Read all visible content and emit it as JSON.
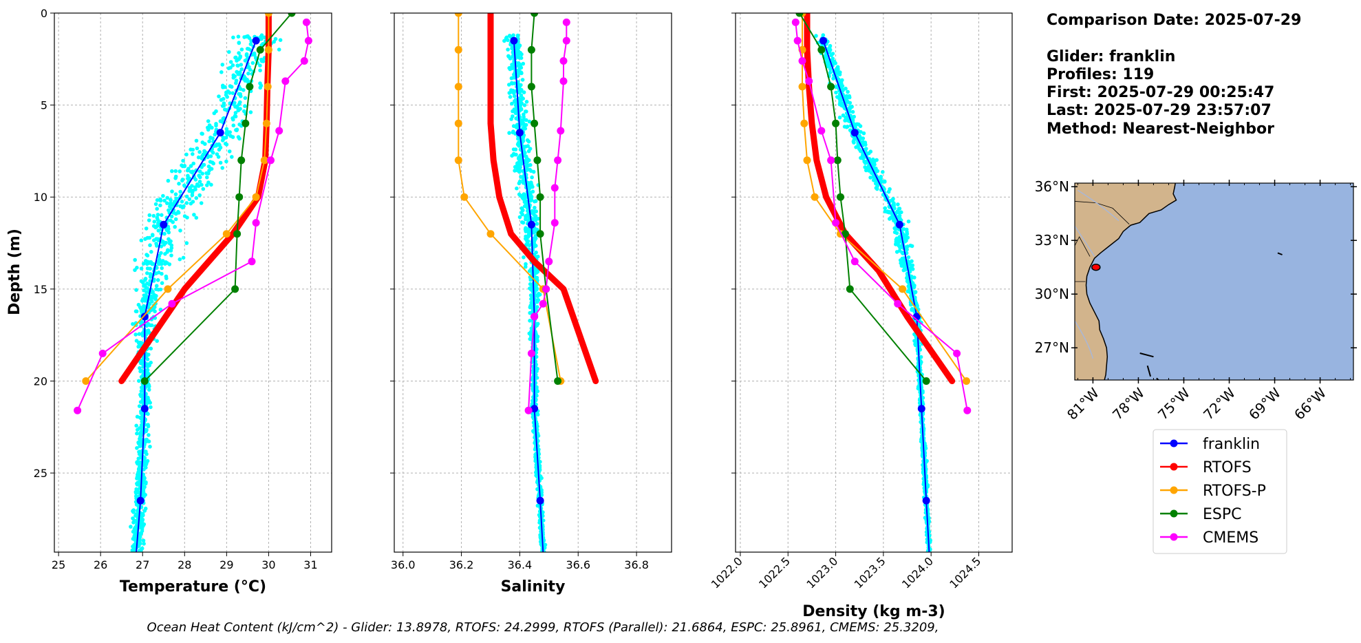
{
  "info": {
    "comparison_date": "Comparison Date: 2025-07-29",
    "glider": "Glider: franklin",
    "profiles": "Profiles: 119",
    "first": "First: 2025-07-29 00:25:47",
    "last": "Last: 2025-07-29 23:57:07",
    "method": "Method: Nearest-Neighbor"
  },
  "footer": "Ocean Heat Content (kJ/cm^2) - Glider: 13.8978,  RTOFS: 24.2999,  RTOFS (Parallel): 21.6864,  ESPC: 25.8961,  CMEMS: 25.3209,",
  "colors": {
    "franklin": "#0000ff",
    "RTOFS": "#ff0000",
    "RTOFS-P": "#ffa500",
    "ESPC": "#008000",
    "CMEMS": "#ff00ff",
    "scatter": "#00ffff",
    "land": "#d2b48c",
    "ocean": "#98b4e0"
  },
  "legend": [
    "franklin",
    "RTOFS",
    "RTOFS-P",
    "ESPC",
    "CMEMS"
  ],
  "chart_data": [
    {
      "type": "line",
      "xlabel": "Temperature (°C)",
      "ylabel": "Depth (m)",
      "xlim": [
        24.9,
        31.5
      ],
      "ylim": [
        29.3,
        0
      ],
      "xticks": [
        25,
        26,
        27,
        28,
        29,
        30,
        31
      ],
      "yticks": [
        0,
        5,
        10,
        15,
        20,
        25
      ],
      "grid": true,
      "series": [
        {
          "name": "franklin",
          "marker": true,
          "width": 2,
          "points": [
            [
              29.7,
              1.5
            ],
            [
              28.85,
              6.5
            ],
            [
              27.5,
              11.5
            ],
            [
              27.05,
              16.5
            ],
            [
              27.05,
              21.5
            ],
            [
              26.95,
              26.5
            ],
            [
              26.85,
              29.3
            ]
          ]
        },
        {
          "name": "RTOFS",
          "marker": false,
          "width": 9,
          "points": [
            [
              30.0,
              0
            ],
            [
              30.0,
              2
            ],
            [
              29.97,
              4
            ],
            [
              29.95,
              6
            ],
            [
              29.92,
              8
            ],
            [
              29.75,
              10
            ],
            [
              29.15,
              12
            ],
            [
              28.0,
              15
            ],
            [
              26.5,
              20
            ]
          ]
        },
        {
          "name": "RTOFS-P",
          "marker": true,
          "width": 2,
          "points": [
            [
              30.0,
              0
            ],
            [
              30.0,
              2
            ],
            [
              29.98,
              4
            ],
            [
              29.95,
              6
            ],
            [
              29.9,
              8
            ],
            [
              29.7,
              10
            ],
            [
              29.0,
              12
            ],
            [
              27.6,
              15
            ],
            [
              25.65,
              20
            ]
          ]
        },
        {
          "name": "ESPC",
          "marker": true,
          "width": 2,
          "points": [
            [
              30.55,
              0
            ],
            [
              29.8,
              2
            ],
            [
              29.55,
              4
            ],
            [
              29.45,
              6
            ],
            [
              29.35,
              8
            ],
            [
              29.3,
              10
            ],
            [
              29.25,
              12
            ],
            [
              29.2,
              15
            ],
            [
              27.05,
              20
            ]
          ]
        },
        {
          "name": "CMEMS",
          "marker": true,
          "width": 2,
          "points": [
            [
              30.9,
              0.5
            ],
            [
              30.95,
              1.5
            ],
            [
              30.85,
              2.6
            ],
            [
              30.4,
              3.7
            ],
            [
              30.25,
              6.4
            ],
            [
              30.05,
              8.0
            ],
            [
              29.7,
              11.4
            ],
            [
              29.6,
              13.5
            ],
            [
              27.7,
              15.8
            ],
            [
              26.05,
              18.5
            ],
            [
              25.45,
              21.6
            ]
          ]
        }
      ],
      "scatter_band": {
        "name": "franklin profiles",
        "points": [
          [
            29.7,
            1.5
          ],
          [
            28.85,
            6.5
          ],
          [
            27.5,
            11.5
          ],
          [
            27.05,
            16.5
          ],
          [
            27.05,
            21.5
          ],
          [
            26.95,
            26.5
          ],
          [
            26.85,
            29.3
          ]
        ]
      }
    },
    {
      "type": "line",
      "xlabel": "Salinity",
      "xlim": [
        35.97,
        36.92
      ],
      "ylim": [
        29.3,
        0
      ],
      "xticks": [
        36.0,
        36.2,
        36.4,
        36.6,
        36.8
      ],
      "yticks": [
        0,
        5,
        10,
        15,
        20,
        25
      ],
      "grid": true,
      "series": [
        {
          "name": "franklin",
          "marker": true,
          "width": 2,
          "points": [
            [
              36.38,
              1.5
            ],
            [
              36.4,
              6.5
            ],
            [
              36.44,
              11.5
            ],
            [
              36.45,
              16.5
            ],
            [
              36.45,
              21.5
            ],
            [
              36.47,
              26.5
            ],
            [
              36.48,
              29.3
            ]
          ]
        },
        {
          "name": "RTOFS",
          "marker": false,
          "width": 9,
          "points": [
            [
              36.3,
              0
            ],
            [
              36.3,
              2
            ],
            [
              36.3,
              4
            ],
            [
              36.3,
              6
            ],
            [
              36.31,
              8
            ],
            [
              36.33,
              10
            ],
            [
              36.37,
              12
            ],
            [
              36.45,
              13.5
            ],
            [
              36.55,
              15
            ],
            [
              36.66,
              20
            ]
          ]
        },
        {
          "name": "RTOFS-P",
          "marker": true,
          "width": 2,
          "points": [
            [
              36.19,
              0
            ],
            [
              36.19,
              2
            ],
            [
              36.19,
              4
            ],
            [
              36.19,
              6
            ],
            [
              36.19,
              8
            ],
            [
              36.21,
              10
            ],
            [
              36.3,
              12
            ],
            [
              36.48,
              15
            ],
            [
              36.54,
              20
            ]
          ]
        },
        {
          "name": "ESPC",
          "marker": true,
          "width": 2,
          "points": [
            [
              36.45,
              0
            ],
            [
              36.44,
              2
            ],
            [
              36.44,
              4
            ],
            [
              36.45,
              6
            ],
            [
              36.46,
              8
            ],
            [
              36.47,
              10
            ],
            [
              36.47,
              12
            ],
            [
              36.49,
              15
            ],
            [
              36.53,
              20
            ]
          ]
        },
        {
          "name": "CMEMS",
          "marker": true,
          "width": 2,
          "points": [
            [
              36.56,
              0.5
            ],
            [
              36.56,
              1.5
            ],
            [
              36.55,
              2.6
            ],
            [
              36.55,
              3.7
            ],
            [
              36.54,
              6.4
            ],
            [
              36.53,
              8.0
            ],
            [
              36.52,
              9.5
            ],
            [
              36.52,
              11.4
            ],
            [
              36.5,
              13.5
            ],
            [
              36.49,
              15.0
            ],
            [
              36.48,
              15.8
            ],
            [
              36.45,
              16.5
            ],
            [
              36.44,
              18.5
            ],
            [
              36.43,
              21.6
            ]
          ]
        }
      ],
      "scatter_band": {
        "name": "franklin profiles",
        "points": [
          [
            36.38,
            1.5
          ],
          [
            36.4,
            6.5
          ],
          [
            36.44,
            11.5
          ],
          [
            36.45,
            16.5
          ],
          [
            36.45,
            21.5
          ],
          [
            36.47,
            26.5
          ],
          [
            36.48,
            29.3
          ]
        ]
      }
    },
    {
      "type": "line",
      "xlabel": "Density (kg m-3)",
      "xlim": [
        1021.95,
        1024.85
      ],
      "ylim": [
        29.3,
        0
      ],
      "xticks": [
        1022.0,
        1022.5,
        1023.0,
        1023.5,
        1024.0,
        1024.5
      ],
      "yticks": [
        0,
        5,
        10,
        15,
        20,
        25
      ],
      "grid": true,
      "series": [
        {
          "name": "franklin",
          "marker": true,
          "width": 2,
          "points": [
            [
              1022.87,
              1.5
            ],
            [
              1023.2,
              6.5
            ],
            [
              1023.67,
              11.5
            ],
            [
              1023.85,
              16.5
            ],
            [
              1023.9,
              21.5
            ],
            [
              1023.95,
              26.5
            ],
            [
              1023.98,
              29.3
            ]
          ]
        },
        {
          "name": "RTOFS",
          "marker": false,
          "width": 9,
          "points": [
            [
              1022.7,
              0
            ],
            [
              1022.7,
              2
            ],
            [
              1022.72,
              4
            ],
            [
              1022.75,
              6
            ],
            [
              1022.8,
              8
            ],
            [
              1022.9,
              10
            ],
            [
              1023.1,
              12
            ],
            [
              1023.45,
              14
            ],
            [
              1023.75,
              16.5
            ],
            [
              1024.22,
              20
            ]
          ]
        },
        {
          "name": "RTOFS-P",
          "marker": true,
          "width": 2,
          "points": [
            [
              1022.65,
              0
            ],
            [
              1022.65,
              2
            ],
            [
              1022.65,
              4
            ],
            [
              1022.67,
              6
            ],
            [
              1022.7,
              8
            ],
            [
              1022.78,
              10
            ],
            [
              1023.05,
              12
            ],
            [
              1023.7,
              15
            ],
            [
              1024.37,
              20
            ]
          ]
        },
        {
          "name": "ESPC",
          "marker": true,
          "width": 2,
          "points": [
            [
              1022.62,
              0
            ],
            [
              1022.85,
              2
            ],
            [
              1022.95,
              4
            ],
            [
              1023.0,
              6
            ],
            [
              1023.02,
              8
            ],
            [
              1023.05,
              10
            ],
            [
              1023.1,
              12
            ],
            [
              1023.15,
              15
            ],
            [
              1023.95,
              20
            ]
          ]
        },
        {
          "name": "CMEMS",
          "marker": true,
          "width": 2,
          "points": [
            [
              1022.58,
              0.5
            ],
            [
              1022.6,
              1.5
            ],
            [
              1022.65,
              2.6
            ],
            [
              1022.72,
              3.7
            ],
            [
              1022.85,
              6.4
            ],
            [
              1022.95,
              8.0
            ],
            [
              1023.0,
              11.4
            ],
            [
              1023.2,
              13.5
            ],
            [
              1023.65,
              15.8
            ],
            [
              1024.27,
              18.5
            ],
            [
              1024.38,
              21.6
            ]
          ]
        }
      ],
      "scatter_band": {
        "name": "franklin profiles",
        "points": [
          [
            1022.87,
            1.5
          ],
          [
            1023.2,
            6.5
          ],
          [
            1023.67,
            11.5
          ],
          [
            1023.85,
            16.5
          ],
          [
            1023.9,
            21.5
          ],
          [
            1023.95,
            26.5
          ],
          [
            1023.98,
            29.3
          ]
        ]
      }
    }
  ],
  "map": {
    "lon_range": [
      -82.2,
      -63.8
    ],
    "lat_range": [
      25.2,
      36.2
    ],
    "lat_ticks": [
      36,
      33,
      30,
      27
    ],
    "lat_labels": [
      "36°N",
      "33°N",
      "30°N",
      "27°N"
    ],
    "lon_ticks": [
      -81,
      -78,
      -75,
      -72,
      -69,
      -66
    ],
    "lon_labels": [
      "81°W",
      "78°W",
      "75°W",
      "72°W",
      "69°W",
      "66°W"
    ],
    "glider_lon": -80.8,
    "glider_lat": 31.5
  }
}
